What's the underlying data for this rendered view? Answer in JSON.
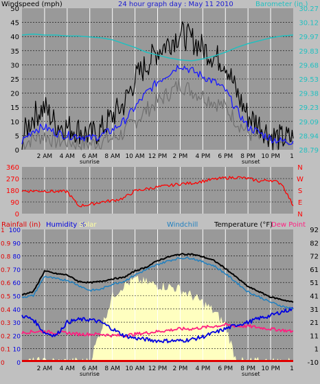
{
  "header": {
    "title": "24 hour graph day : May 11 2010",
    "windspeed_label": "Windspeed (mph)",
    "barometer_label": "Barometer (in.)"
  },
  "time_ticks": [
    "2 AM",
    "4 AM",
    "6 AM",
    "8 AM",
    "10 AM",
    "12 PM",
    "2 PM",
    "4 PM",
    "6 PM",
    "8 PM",
    "10 PM"
  ],
  "sunrise_label": "sunrise",
  "sunset_label": "sunset",
  "end_tick": "1",
  "bottom_labels": {
    "rainfall": "Rainfall (in)",
    "humidity": "Humidity %",
    "solar": "Solar",
    "windchill": "Windchill",
    "temperature": "Temperature (°F)",
    "dewpoint": "Dew Point"
  },
  "colors": {
    "background": "#c0c0c0",
    "plot_bg": "#999999",
    "gust": "#000000",
    "avg_wind": "#1a1aff",
    "wind_gray": "#707070",
    "barometer": "#20c0c0",
    "direction": "#ff0000",
    "temperature": "#000000",
    "windchill": "#2080c0",
    "humidity": "#0000e0",
    "dewpoint": "#ff2080",
    "solar": "#ffffc0",
    "rain": "#e00000",
    "title": "#1a1ad0"
  },
  "chart_data": [
    {
      "type": "line",
      "title": "24 hour graph day : May 11 2010",
      "ylabel": "Windspeed (mph)",
      "y2label": "Barometer (in.)",
      "x_hours": [
        0,
        1,
        2,
        3,
        4,
        5,
        6,
        7,
        8,
        9,
        10,
        11,
        12,
        13,
        14,
        15,
        16,
        17,
        18,
        19,
        20,
        21,
        22,
        23,
        24
      ],
      "ylim": [
        0,
        50
      ],
      "yticks": [
        0,
        5,
        10,
        15,
        20,
        25,
        30,
        35,
        40,
        45,
        50
      ],
      "y2lim": [
        28.79,
        30.27
      ],
      "y2ticks": [
        "28.79",
        "28.94",
        "29.09",
        "29.23",
        "29.38",
        "29.53",
        "29.68",
        "29.83",
        "29.97",
        "30.12",
        "30.27"
      ],
      "series": [
        {
          "name": "Wind gust",
          "values": [
            4,
            12,
            15,
            9,
            8,
            7,
            5,
            7,
            12,
            16,
            25,
            30,
            35,
            38,
            41,
            39,
            36,
            33,
            31,
            20,
            12,
            9,
            5,
            4,
            4
          ]
        },
        {
          "name": "Wind speed",
          "values": [
            3,
            7,
            8,
            6,
            5,
            5,
            4,
            5,
            7,
            10,
            15,
            20,
            24,
            27,
            30,
            28,
            26,
            24,
            21,
            14,
            8,
            6,
            4,
            3,
            3
          ]
        },
        {
          "name": "Wind low",
          "values": [
            2,
            4,
            5,
            3,
            3,
            2,
            2,
            3,
            4,
            6,
            10,
            14,
            17,
            20,
            23,
            21,
            19,
            17,
            15,
            10,
            6,
            4,
            3,
            2,
            2
          ]
        },
        {
          "name": "Barometer",
          "values": [
            29.99,
            30.0,
            29.99,
            29.99,
            29.98,
            29.98,
            29.97,
            29.96,
            29.94,
            29.9,
            29.86,
            29.81,
            29.78,
            29.75,
            29.73,
            29.72,
            29.74,
            29.77,
            29.81,
            29.86,
            29.9,
            29.93,
            29.96,
            29.98,
            29.99
          ]
        }
      ]
    },
    {
      "type": "line",
      "ylabel": "Wind direction",
      "ylim": [
        0,
        360
      ],
      "yticks": [
        0,
        90,
        180,
        270,
        360
      ],
      "compass": [
        "N",
        "W",
        "S",
        "E",
        "N"
      ],
      "x_hours": [
        0,
        1,
        2,
        3,
        4,
        5,
        6,
        7,
        8,
        9,
        10,
        11,
        12,
        13,
        14,
        15,
        16,
        17,
        18,
        19,
        20,
        21,
        22,
        23,
        24
      ],
      "series": [
        {
          "name": "Wind direction",
          "values": [
            175,
            175,
            175,
            170,
            170,
            60,
            70,
            90,
            100,
            120,
            175,
            190,
            205,
            215,
            230,
            235,
            250,
            265,
            275,
            280,
            270,
            250,
            260,
            230,
            60
          ]
        }
      ]
    },
    {
      "type": "line",
      "x_hours": [
        0,
        1,
        2,
        3,
        4,
        5,
        6,
        7,
        8,
        9,
        10,
        11,
        12,
        13,
        14,
        15,
        16,
        17,
        18,
        19,
        20,
        21,
        22,
        23,
        24
      ],
      "yticks_rain": [
        "0",
        "0.1",
        "0.2",
        "0.3",
        "0.4",
        "0.5",
        "0.6",
        "0.7",
        "0.8",
        "0.9",
        "1"
      ],
      "yticks_humidity": [
        "0",
        "10",
        "20",
        "30",
        "40",
        "50",
        "60",
        "70",
        "80",
        "90",
        "100"
      ],
      "yticks_temperature": [
        "-10",
        "1",
        "11",
        "21",
        "31",
        "41",
        "51",
        "61",
        "72",
        "82",
        "92"
      ],
      "series": [
        {
          "name": "Temperature",
          "values": [
            42,
            44,
            60,
            58,
            57,
            52,
            51,
            52,
            54,
            55,
            60,
            63,
            68,
            71,
            73,
            73,
            71,
            68,
            62,
            55,
            48,
            44,
            40,
            38,
            36
          ]
        },
        {
          "name": "Windchill",
          "values": [
            40,
            41,
            56,
            54,
            53,
            49,
            45,
            46,
            50,
            52,
            57,
            61,
            65,
            68,
            70,
            70,
            67,
            64,
            58,
            51,
            44,
            40,
            36,
            33,
            31
          ]
        },
        {
          "name": "Humidity",
          "values": [
            35,
            32,
            22,
            20,
            30,
            32,
            32,
            30,
            25,
            20,
            18,
            17,
            16,
            16,
            16,
            17,
            19,
            22,
            25,
            28,
            30,
            33,
            35,
            38,
            40
          ]
        },
        {
          "name": "Dew Point",
          "values": [
            22,
            23,
            23,
            22,
            22,
            21,
            21,
            21,
            20,
            20,
            21,
            22,
            23,
            24,
            25,
            25,
            26,
            27,
            28,
            27,
            27,
            26,
            25,
            24,
            23
          ]
        },
        {
          "name": "Solar",
          "values": [
            0,
            0,
            0,
            0,
            0,
            0,
            0,
            25,
            50,
            58,
            62,
            60,
            58,
            57,
            55,
            50,
            45,
            38,
            28,
            0,
            0,
            0,
            0,
            0,
            0
          ]
        },
        {
          "name": "Rainfall",
          "values": [
            0,
            0,
            0,
            0,
            0,
            0,
            0,
            0,
            0,
            0,
            0,
            0,
            0,
            0,
            0,
            0,
            0,
            0,
            0,
            0,
            0,
            0,
            0,
            0,
            0
          ]
        }
      ]
    }
  ]
}
